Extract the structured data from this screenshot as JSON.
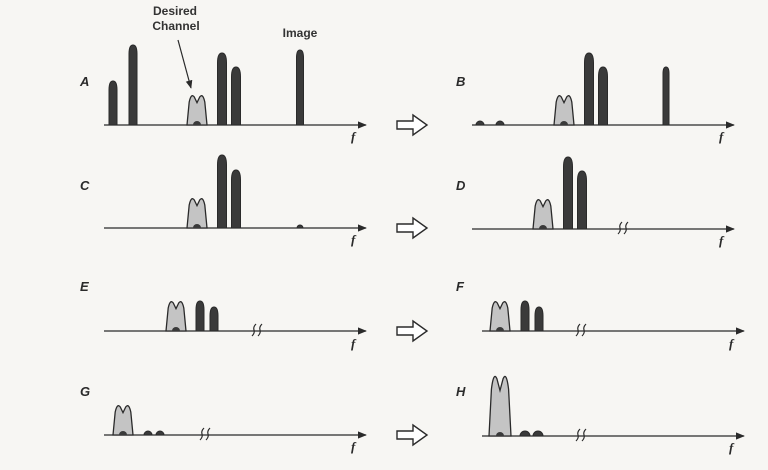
{
  "annotations": {
    "desired_channel_line1": "Desired",
    "desired_channel_line2": "Channel",
    "image": "Image"
  },
  "axis_label": "f",
  "colors": {
    "ink": "#2a2a2a",
    "dark_fill": "#3a3a3a",
    "light_fill": "#c4c4c4",
    "background": "#f7f6f3"
  },
  "panels": [
    {
      "id": "A",
      "label": "A",
      "axis_break": false
    },
    {
      "id": "B",
      "label": "B",
      "axis_break": false
    },
    {
      "id": "C",
      "label": "C",
      "axis_break": false
    },
    {
      "id": "D",
      "label": "D",
      "axis_break": true
    },
    {
      "id": "E",
      "label": "E",
      "axis_break": true
    },
    {
      "id": "F",
      "label": "F",
      "axis_break": true
    },
    {
      "id": "G",
      "label": "G",
      "axis_break": true
    },
    {
      "id": "H",
      "label": "H",
      "axis_break": true
    }
  ],
  "transition_icons": [
    "hollow-arrow-icon",
    "hollow-arrow-icon",
    "hollow-arrow-icon",
    "hollow-arrow-icon"
  ]
}
